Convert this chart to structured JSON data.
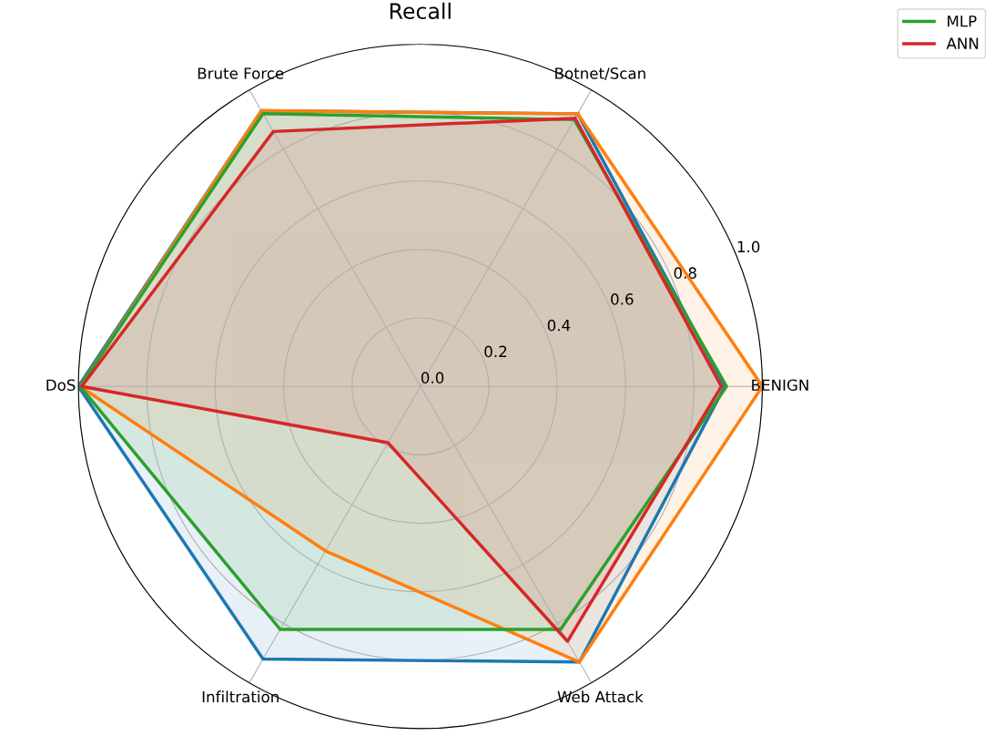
{
  "chart_data": {
    "type": "radar",
    "title": "Recall",
    "categories": [
      "Botnet/Scan",
      "BENIGN",
      "Web Attack",
      "Infiltration",
      "DoS",
      "Brute Force"
    ],
    "ylim": [
      0,
      1.0
    ],
    "yticks": [
      {
        "value": 0,
        "label": "0.0"
      },
      {
        "value": 0.2,
        "label": "0.2"
      },
      {
        "value": 0.4,
        "label": "0.4"
      },
      {
        "value": 0.6,
        "label": "0.6"
      },
      {
        "value": 0.8,
        "label": "0.8"
      },
      {
        "value": 1,
        "label": "1.0"
      }
    ],
    "grid": true,
    "legend": "top right",
    "series": [
      {
        "color": "#1f77b4",
        "values": [
          0.92,
          0.89,
          0.93,
          0.92,
          1.0,
          0.93
        ]
      },
      {
        "color": "#ff7f0e",
        "values": [
          0.92,
          1.0,
          0.93,
          0.555,
          0.995,
          0.93
        ]
      },
      {
        "name": "MLP",
        "color": "#2ca02c",
        "values": [
          0.9,
          0.895,
          0.82,
          0.82,
          0.995,
          0.92
        ]
      },
      {
        "name": "ANN",
        "color": "#d62728",
        "values": [
          0.905,
          0.88,
          0.86,
          0.19,
          0.99,
          0.86
        ]
      }
    ]
  }
}
